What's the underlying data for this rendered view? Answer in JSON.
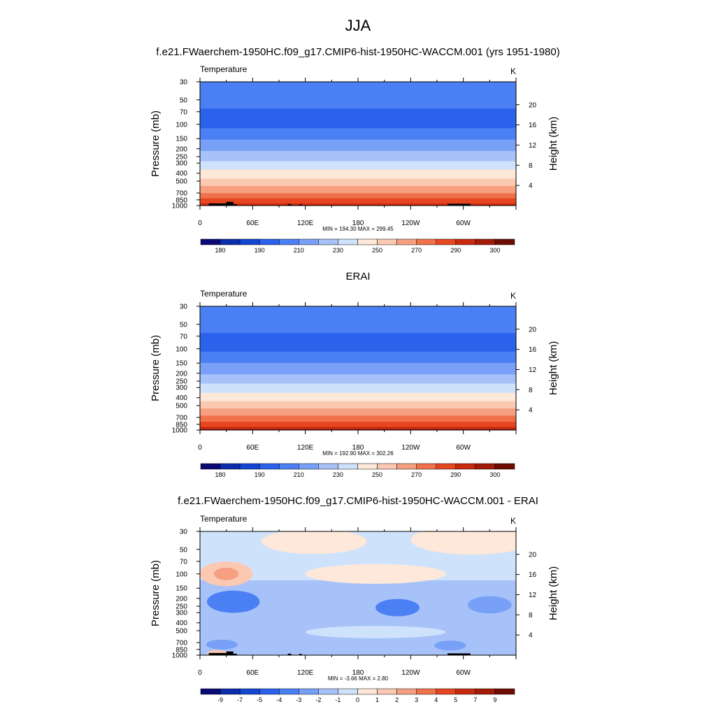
{
  "figure": {
    "title": "JJA",
    "panel_titles": [
      "f.e21.FWaerchem-1950HC.f09_g17.CMIP6-hist-1950HC-WACCM.001 (yrs 1951-1980)",
      "ERAI",
      "f.e21.FWaerchem-1950HC.f09_g17.CMIP6-hist-1950HC-WACCM.001 - ERAI"
    ]
  },
  "chart_data": [
    {
      "type": "contour",
      "variable": "Temperature",
      "units": "K",
      "ylabel": "Pressure (mb)",
      "ylabel_right": "Height (km)",
      "x_ticks": [
        "0",
        "60E",
        "120E",
        "180",
        "120W",
        "60W"
      ],
      "p_ticks": [
        30,
        50,
        70,
        100,
        150,
        200,
        250,
        300,
        400,
        500,
        700,
        850,
        1000
      ],
      "p_tick_labels": [
        "30",
        "50",
        "70",
        "100",
        "150",
        "200",
        "250",
        "300",
        "400",
        "500",
        "700",
        "850",
        "1000"
      ],
      "height_ticks": [
        4,
        8,
        12,
        16,
        20
      ],
      "height_tick_labels": [
        "4",
        "8",
        "12",
        "16",
        "20"
      ],
      "stats": "MIN = 194.30  MAX = 299.45",
      "colorbar_labels": [
        "180",
        "190",
        "210",
        "230",
        "250",
        "270",
        "290",
        "300"
      ],
      "colors": [
        "#0a0a75",
        "#0c2dad",
        "#1446d4",
        "#2a62ec",
        "#4b80f4",
        "#78a0f7",
        "#a6c2f9",
        "#cfe2fb",
        "#fde8da",
        "#fbc8b2",
        "#f6a081",
        "#f0714b",
        "#e64620",
        "#c82a0e",
        "#a21b08",
        "#6f0c02"
      ],
      "profile": [
        [
          30,
          209
        ],
        [
          50,
          203
        ],
        [
          70,
          199
        ],
        [
          100,
          197
        ],
        [
          150,
          209
        ],
        [
          200,
          218
        ],
        [
          250,
          226
        ],
        [
          300,
          232
        ],
        [
          400,
          244
        ],
        [
          500,
          253
        ],
        [
          700,
          270
        ],
        [
          850,
          283
        ],
        [
          1000,
          294
        ]
      ],
      "topography": true
    },
    {
      "type": "contour",
      "variable": "Temperature",
      "units": "K",
      "ylabel": "Pressure (mb)",
      "ylabel_right": "Height (km)",
      "x_ticks": [
        "0",
        "60E",
        "120E",
        "180",
        "120W",
        "60W"
      ],
      "p_ticks": [
        30,
        50,
        70,
        100,
        150,
        200,
        250,
        300,
        400,
        500,
        700,
        850,
        1000
      ],
      "p_tick_labels": [
        "30",
        "50",
        "70",
        "100",
        "150",
        "200",
        "250",
        "300",
        "400",
        "500",
        "700",
        "850",
        "1000"
      ],
      "height_ticks": [
        4,
        8,
        12,
        16,
        20
      ],
      "height_tick_labels": [
        "4",
        "8",
        "12",
        "16",
        "20"
      ],
      "stats": "MIN = 192.90  MAX = 302.26",
      "colorbar_labels": [
        "180",
        "190",
        "210",
        "230",
        "250",
        "270",
        "290",
        "300"
      ],
      "colors": [
        "#0a0a75",
        "#0c2dad",
        "#1446d4",
        "#2a62ec",
        "#4b80f4",
        "#78a0f7",
        "#a6c2f9",
        "#cfe2fb",
        "#fde8da",
        "#fbc8b2",
        "#f6a081",
        "#f0714b",
        "#e64620",
        "#c82a0e",
        "#a21b08",
        "#6f0c02"
      ],
      "profile": [
        [
          30,
          208
        ],
        [
          50,
          203
        ],
        [
          70,
          199
        ],
        [
          100,
          197
        ],
        [
          150,
          210
        ],
        [
          200,
          219
        ],
        [
          250,
          227
        ],
        [
          300,
          234
        ],
        [
          400,
          246
        ],
        [
          500,
          256
        ],
        [
          700,
          272
        ],
        [
          850,
          285
        ],
        [
          1000,
          297
        ]
      ],
      "topography": false
    },
    {
      "type": "contour",
      "variable": "Temperature",
      "units": "K",
      "ylabel": "Pressure (mb)",
      "ylabel_right": "Height (km)",
      "x_ticks": [
        "0",
        "60E",
        "120E",
        "180",
        "120W",
        "60W"
      ],
      "p_ticks": [
        30,
        50,
        70,
        100,
        150,
        200,
        250,
        300,
        400,
        500,
        700,
        850,
        1000
      ],
      "p_tick_labels": [
        "30",
        "50",
        "70",
        "100",
        "150",
        "200",
        "250",
        "300",
        "400",
        "500",
        "700",
        "850",
        "1000"
      ],
      "height_ticks": [
        4,
        8,
        12,
        16,
        20
      ],
      "height_tick_labels": [
        "4",
        "8",
        "12",
        "16",
        "20"
      ],
      "stats": "MIN =  -3.66  MAX =   2.80",
      "colorbar_labels": [
        "-9",
        "-7",
        "-5",
        "-4",
        "-3",
        "-2",
        "-1",
        "0",
        "1",
        "2",
        "3",
        "4",
        "5",
        "7",
        "9"
      ],
      "colors": [
        "#0a0a75",
        "#0c2dad",
        "#1446d4",
        "#2a62ec",
        "#4b80f4",
        "#78a0f7",
        "#a6c2f9",
        "#cfe2fb",
        "#fde8da",
        "#fbc8b2",
        "#f6a081",
        "#f0714b",
        "#e64620",
        "#c82a0e",
        "#a21b08",
        "#6f0c02"
      ],
      "bands": [
        {
          "p": [
            30,
            50
          ],
          "color": "#cfe2fb"
        },
        {
          "p": [
            50,
            85
          ],
          "color": "#cfe2fb"
        },
        {
          "p": [
            85,
            120
          ],
          "color": "#cfe2fb"
        },
        {
          "p": [
            120,
            160
          ],
          "color": "#a6c2f9"
        },
        {
          "p": [
            160,
            280
          ],
          "color": "#a6c2f9"
        },
        {
          "p": [
            280,
            450
          ],
          "color": "#a6c2f9"
        },
        {
          "p": [
            450,
            650
          ],
          "color": "#a6c2f9"
        },
        {
          "p": [
            650,
            1000
          ],
          "color": "#a6c2f9"
        }
      ],
      "blobs": [
        {
          "lon": 130,
          "p": 40,
          "dlon": 60,
          "dp": 0.1,
          "color": "#fde8da"
        },
        {
          "lon": 310,
          "p": 38,
          "dlon": 70,
          "dp": 0.12,
          "color": "#fde8da"
        },
        {
          "lon": 30,
          "p": 100,
          "dlon": 30,
          "dp": 0.1,
          "color": "#fbc8b2"
        },
        {
          "lon": 30,
          "p": 100,
          "dlon": 14,
          "dp": 0.05,
          "color": "#f6a081"
        },
        {
          "lon": 200,
          "p": 100,
          "dlon": 80,
          "dp": 0.08,
          "color": "#fde8da"
        },
        {
          "lon": 38,
          "p": 220,
          "dlon": 30,
          "dp": 0.09,
          "color": "#4b80f4"
        },
        {
          "lon": 225,
          "p": 260,
          "dlon": 25,
          "dp": 0.07,
          "color": "#4b80f4"
        },
        {
          "lon": 330,
          "p": 240,
          "dlon": 25,
          "dp": 0.07,
          "color": "#78a0f7"
        },
        {
          "lon": 200,
          "p": 520,
          "dlon": 80,
          "dp": 0.05,
          "color": "#cfe2fb"
        },
        {
          "lon": 25,
          "p": 740,
          "dlon": 18,
          "dp": 0.04,
          "color": "#78a0f7"
        },
        {
          "lon": 285,
          "p": 760,
          "dlon": 18,
          "dp": 0.04,
          "color": "#78a0f7"
        },
        {
          "lon": 20,
          "p": 960,
          "dlon": 12,
          "dp": 0.03,
          "color": "#fbc8b2"
        }
      ],
      "topography": true
    }
  ]
}
